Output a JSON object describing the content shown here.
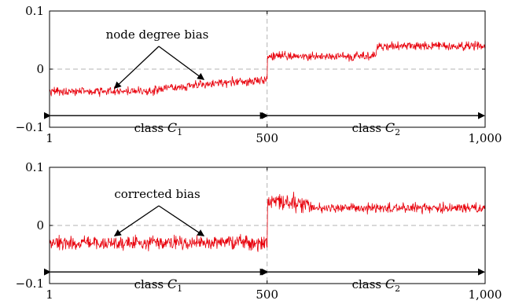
{
  "chart_data": [
    {
      "type": "line",
      "x_range": [
        1,
        1000
      ],
      "ylim": [
        -0.1,
        0.1
      ],
      "x_ticks": [
        1,
        500,
        1000
      ],
      "x_tick_labels": [
        "1",
        "500",
        "1,000"
      ],
      "y_ticks": [
        -0.1,
        0,
        0.1
      ],
      "y_tick_labels": [
        "−0.1",
        "0",
        "0.1"
      ],
      "grid": "dashed reference lines at y = 0 and x = 500",
      "series": [
        {
          "color": "#e8000b",
          "segments": [
            {
              "x_start": 1,
              "x_end": 250,
              "level": -0.038,
              "noise_amplitude": 0.007
            },
            {
              "x_start": 250,
              "x_end": 500,
              "level_start": -0.033,
              "level_end": -0.018,
              "noise_amplitude": 0.007
            },
            {
              "x_start": 500,
              "x_end": 750,
              "level": 0.022,
              "noise_amplitude": 0.007
            },
            {
              "x_start": 750,
              "x_end": 1000,
              "level": 0.04,
              "noise_amplitude": 0.007
            }
          ]
        }
      ],
      "annotations": {
        "note": "node degree bias",
        "note_arrow_targets": [
          {
            "x": 150,
            "y": -0.033
          },
          {
            "x": 355,
            "y": -0.018
          }
        ],
        "class_labels": [
          {
            "prefix": "class",
            "symbol": "C",
            "sub": "1",
            "x_start": 1,
            "x_end": 500
          },
          {
            "prefix": "class",
            "symbol": "C",
            "sub": "2",
            "x_start": 500,
            "x_end": 1000
          }
        ],
        "class_arrow_y": -0.08
      }
    },
    {
      "type": "line",
      "x_range": [
        1,
        1000
      ],
      "ylim": [
        -0.1,
        0.1
      ],
      "x_ticks": [
        1,
        500,
        1000
      ],
      "x_tick_labels": [
        "1",
        "500",
        "1,000"
      ],
      "y_ticks": [
        -0.1,
        0,
        0.1
      ],
      "y_tick_labels": [
        "−0.1",
        "0",
        "0.1"
      ],
      "grid": "dashed reference lines at y = 0 and x = 500",
      "series": [
        {
          "color": "#e8000b",
          "segments": [
            {
              "x_start": 1,
              "x_end": 500,
              "level": -0.03,
              "noise_amplitude": 0.011
            },
            {
              "x_start": 500,
              "x_end": 600,
              "level_start": 0.045,
              "level_end": 0.035,
              "noise_amplitude": 0.015
            },
            {
              "x_start": 600,
              "x_end": 1000,
              "level": 0.03,
              "noise_amplitude": 0.008
            }
          ]
        }
      ],
      "annotations": {
        "note": "corrected bias",
        "note_arrow_targets": [
          {
            "x": 150,
            "y": -0.018
          },
          {
            "x": 355,
            "y": -0.018
          }
        ],
        "class_labels": [
          {
            "prefix": "class",
            "symbol": "C",
            "sub": "1",
            "x_start": 1,
            "x_end": 500
          },
          {
            "prefix": "class",
            "symbol": "C",
            "sub": "2",
            "x_start": 500,
            "x_end": 1000
          }
        ],
        "class_arrow_y": -0.08
      }
    }
  ]
}
